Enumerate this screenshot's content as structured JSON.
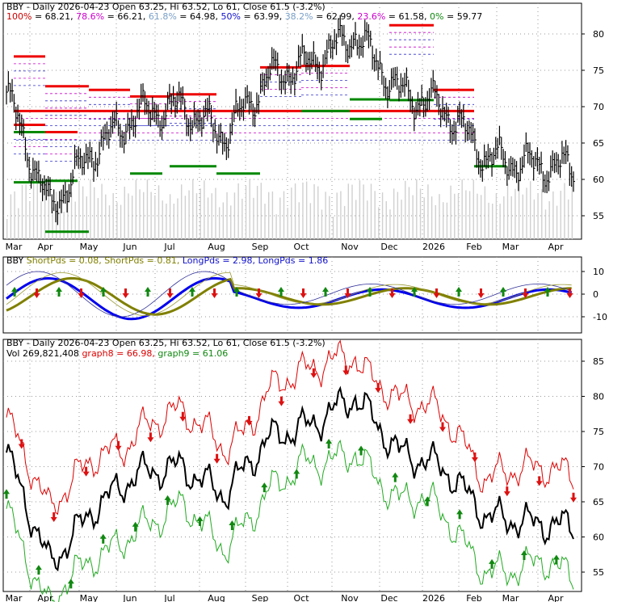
{
  "colors": {
    "price": "#000000",
    "resistance": "#ee0000",
    "support": "#008800",
    "fib_label": "#cc0000",
    "vol_bar": "#d0d0d0",
    "grid": "#999999",
    "up_arrow": "#118811",
    "down_arrow": "#dd1111",
    "blue": "#0000ee",
    "olive": "#808000",
    "trail_red": "#dd0000",
    "trail_green": "#22aa22",
    "label_blue": "#1111cc",
    "label_olive": "#808000",
    "label_green": "#118811",
    "label_gray": "#7aa0c8"
  },
  "panel1": {
    "title": "BBY - Daily 2026-04-23 Open 63.25, Hi 63.52, Lo 61, Close 61.5 (-3.2%)",
    "fib": [
      {
        "label": "100%",
        "value": "68.21",
        "color": "#cc0000"
      },
      {
        "label": "78.6%",
        "value": "66.21",
        "color": "#cc00cc"
      },
      {
        "label": "61.8%",
        "value": "64.98",
        "color": "#7aa0c8"
      },
      {
        "label": "50%",
        "value": "63.99",
        "color": "#1111cc"
      },
      {
        "label": "38.2%",
        "value": "62.99",
        "color": "#7aa0c8"
      },
      {
        "label": "23.6%",
        "value": "61.58",
        "color": "#cc00cc"
      },
      {
        "label": "0%",
        "value": "59.77",
        "color": "#118811"
      }
    ],
    "yticks": [
      "80",
      "75",
      "70",
      "65",
      "60",
      "55"
    ]
  },
  "panel2": {
    "title": "BBY",
    "items": [
      {
        "text": "ShortPds = 0.08,",
        "color": "#808000"
      },
      {
        "text": "ShortPds = 0.81,",
        "color": "#808000"
      },
      {
        "text": "LongPds = 2.98,",
        "color": "#1111cc"
      },
      {
        "text": "LongPds = 1.86",
        "color": "#1111cc"
      }
    ],
    "yticks": [
      "10",
      "0",
      "-10"
    ]
  },
  "panel3": {
    "title": "BBY - Daily 2026-04-23 Open 63.25, Hi 63.52, Lo 61, Close 61.5 (-3.2%)",
    "vol": "Vol 269,821,408",
    "graph8": "graph8 = 66.98,",
    "graph9": "graph9 = 61.06",
    "yticks": [
      "85",
      "80",
      "75",
      "70",
      "65",
      "60",
      "55"
    ]
  },
  "xlabels": [
    "Mar",
    "Apr",
    "May",
    "Jun",
    "Jul",
    "Aug",
    "Sep",
    "Oct",
    "Nov",
    "Dec",
    "2026",
    "Feb",
    "Mar",
    "Apr"
  ],
  "chart_data": {
    "type": "line",
    "ticker": "BBY",
    "x": [
      "Mar",
      "Apr",
      "May",
      "Jun",
      "Jul",
      "Aug",
      "Sep",
      "Oct",
      "Nov",
      "Dec",
      "2026",
      "Feb",
      "Mar",
      "Apr"
    ],
    "series": [
      {
        "name": "Close",
        "values": [
          72,
          56,
          64,
          69,
          70,
          66,
          74,
          76,
          80,
          72,
          70,
          63,
          62,
          61.5
        ]
      }
    ],
    "ylim": [
      52,
      83
    ],
    "resistance_levels": [
      {
        "x0": "Mar",
        "x1": "Apr",
        "value": 76.9
      },
      {
        "x0": "Apr",
        "x1": "May",
        "value": 72.8
      },
      {
        "x0": "May",
        "x1": "Jun",
        "value": 72.3
      },
      {
        "x0": "Jun",
        "x1": "Jul",
        "value": 71.4
      },
      {
        "x0": "Jul",
        "x1": "Aug",
        "value": 71.7
      },
      {
        "x0": "Sep",
        "x1": "Oct",
        "value": 75.4
      },
      {
        "x0": "Oct",
        "x1": "Nov",
        "value": 75.6
      },
      {
        "x0": "Dec",
        "x1": "2026",
        "value": 81.2
      },
      {
        "x0": "2026",
        "x1": "Feb",
        "value": 72.3
      },
      {
        "x0": "Feb",
        "x1": "Mar",
        "value": 69.4
      },
      {
        "x0": "Mar",
        "x1": "Apr",
        "value": 67.5
      },
      {
        "x0": "Apr",
        "x1": "Apr",
        "value": 66.5
      }
    ],
    "support_levels": [
      {
        "x0": "Mar",
        "x1": "Apr",
        "value": 66.5
      },
      {
        "x0": "Apr",
        "x1": "May",
        "value": 52.8
      },
      {
        "x0": "Jun",
        "x1": "Jun",
        "value": 60.8
      },
      {
        "x0": "Jul",
        "x1": "Aug",
        "value": 61.8
      },
      {
        "x0": "Aug",
        "x1": "Sep",
        "value": 60.8
      },
      {
        "x0": "Oct",
        "x1": "Nov",
        "value": 69.4
      },
      {
        "x0": "Nov",
        "x1": "Nov",
        "value": 68.3
      },
      {
        "x0": "Nov",
        "x1": "Dec",
        "value": 71.0
      },
      {
        "x0": "Dec",
        "x1": "2026",
        "value": 70.9
      },
      {
        "x0": "Feb",
        "x1": "Feb",
        "value": 61.8
      },
      {
        "x0": "Mar",
        "x1": "Apr",
        "value": 59.6
      },
      {
        "x0": "Apr",
        "x1": "Apr",
        "value": 59.8
      }
    ]
  }
}
